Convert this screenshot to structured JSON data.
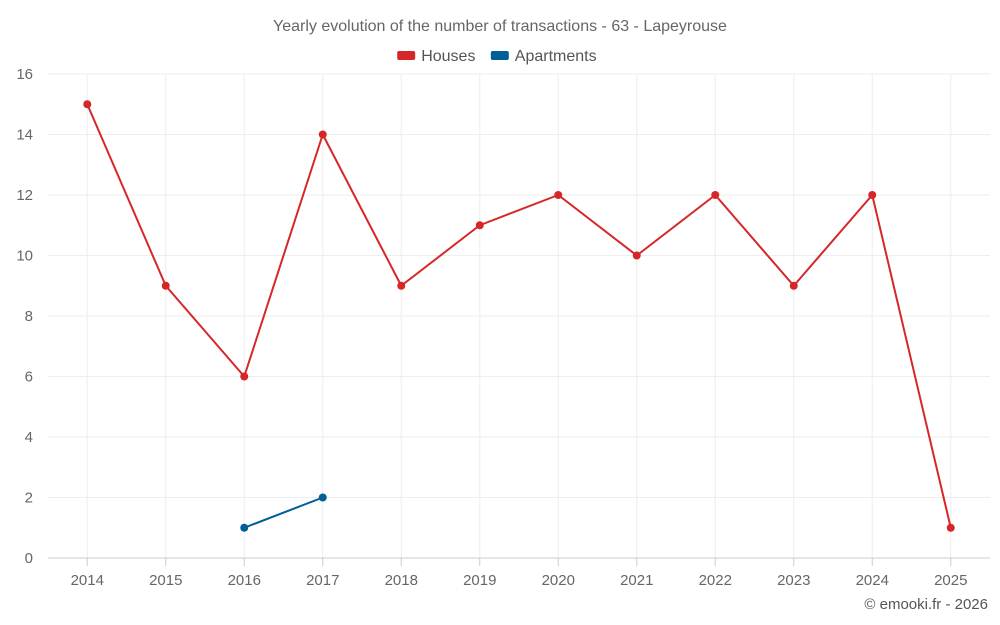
{
  "chart_data": {
    "type": "line",
    "title": "Yearly evolution of the number of transactions - 63 - Lapeyrouse",
    "categories": [
      "2014",
      "2015",
      "2016",
      "2017",
      "2018",
      "2019",
      "2020",
      "2021",
      "2022",
      "2023",
      "2024",
      "2025"
    ],
    "ylim": [
      0,
      16
    ],
    "yticks": [
      0,
      2,
      4,
      6,
      8,
      10,
      12,
      14,
      16
    ],
    "grid": true,
    "legend_position": "top-center",
    "xlabel": "",
    "ylabel": "",
    "series": [
      {
        "name": "Houses",
        "color": "#d62728",
        "values": [
          15,
          9,
          6,
          14,
          9,
          11,
          12,
          10,
          12,
          9,
          12,
          1
        ]
      },
      {
        "name": "Apartments",
        "color": "#005f96",
        "values": [
          null,
          null,
          1,
          2,
          null,
          null,
          null,
          null,
          null,
          null,
          null,
          null
        ]
      }
    ]
  },
  "credit": "© emooki.fr - 2026"
}
